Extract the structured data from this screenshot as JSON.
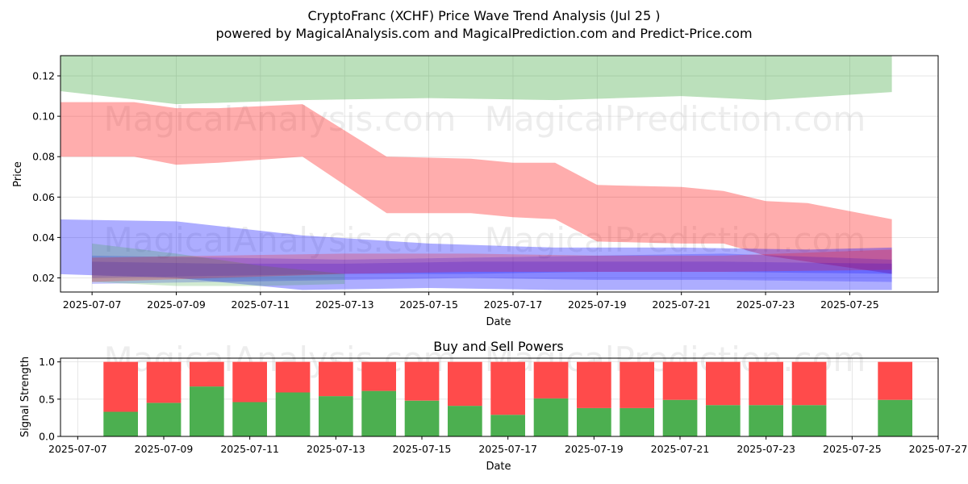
{
  "title": "CryptoFranc (XCHF) Price Wave Trend Analysis (Jul 25 )",
  "subtitle": "powered by MagicalAnalysis.com and MagicalPrediction.com and Predict-Price.com",
  "watermarks": [
    "MagicalAnalysis.com",
    "MagicalPrediction.com"
  ],
  "colors": {
    "green_band": "#2ca02c",
    "red_band": "#ff0000",
    "blue_band": "#0000ff",
    "buy": "#4caf50",
    "sell": "#ff4b4b",
    "grid": "#e0e0e0"
  },
  "chart_data": [
    {
      "type": "area",
      "title": "",
      "xlabel": "Date",
      "ylabel": "Price",
      "xlim": [
        "2025-07-06",
        "2025-07-27"
      ],
      "ylim": [
        0.013,
        0.13
      ],
      "x_ticks": [
        "2025-07-07",
        "2025-07-09",
        "2025-07-11",
        "2025-07-13",
        "2025-07-15",
        "2025-07-17",
        "2025-07-19",
        "2025-07-21",
        "2025-07-23",
        "2025-07-25"
      ],
      "y_ticks": [
        0.02,
        0.04,
        0.06,
        0.08,
        0.1,
        0.12
      ],
      "grid": true,
      "bands": [
        {
          "color": "green",
          "dates": [
            "2025-07-06",
            "2025-07-09",
            "2025-07-12",
            "2025-07-15",
            "2025-07-18",
            "2025-07-21",
            "2025-07-23",
            "2025-07-26"
          ],
          "lower": [
            0.113,
            0.106,
            0.108,
            0.109,
            0.108,
            0.11,
            0.108,
            0.112
          ],
          "upper": [
            0.135,
            0.135,
            0.135,
            0.135,
            0.135,
            0.135,
            0.135,
            0.135
          ]
        },
        {
          "color": "red",
          "dates": [
            "2025-07-06",
            "2025-07-08",
            "2025-07-09",
            "2025-07-10",
            "2025-07-12",
            "2025-07-14",
            "2025-07-16",
            "2025-07-17",
            "2025-07-18",
            "2025-07-19",
            "2025-07-21",
            "2025-07-22",
            "2025-07-23",
            "2025-07-24",
            "2025-07-25",
            "2025-07-26"
          ],
          "lower": [
            0.08,
            0.08,
            0.076,
            0.077,
            0.08,
            0.052,
            0.052,
            0.05,
            0.049,
            0.038,
            0.037,
            0.037,
            0.031,
            0.028,
            0.025,
            0.022
          ],
          "upper": [
            0.107,
            0.107,
            0.104,
            0.104,
            0.106,
            0.08,
            0.079,
            0.077,
            0.077,
            0.066,
            0.065,
            0.063,
            0.058,
            0.057,
            0.053,
            0.049
          ]
        },
        {
          "color": "blue",
          "dates": [
            "2025-07-06",
            "2025-07-09",
            "2025-07-12",
            "2025-07-15",
            "2025-07-18",
            "2025-07-21",
            "2025-07-24",
            "2025-07-26"
          ],
          "lower": [
            0.022,
            0.02,
            0.014,
            0.015,
            0.014,
            0.014,
            0.014,
            0.014
          ],
          "upper": [
            0.049,
            0.048,
            0.041,
            0.037,
            0.035,
            0.035,
            0.034,
            0.035
          ]
        },
        {
          "color": "blue",
          "dates": [
            "2025-07-07",
            "2025-07-10",
            "2025-07-13",
            "2025-07-16",
            "2025-07-19",
            "2025-07-22",
            "2025-07-26"
          ],
          "lower": [
            0.017,
            0.018,
            0.019,
            0.02,
            0.019,
            0.019,
            0.018
          ],
          "upper": [
            0.031,
            0.03,
            0.029,
            0.03,
            0.031,
            0.032,
            0.029
          ]
        },
        {
          "color": "blue",
          "dates": [
            "2025-07-07",
            "2025-07-10",
            "2025-07-13",
            "2025-07-16",
            "2025-07-19",
            "2025-07-22",
            "2025-07-26"
          ],
          "lower": [
            0.02,
            0.021,
            0.022,
            0.022,
            0.023,
            0.023,
            0.022
          ],
          "upper": [
            0.028,
            0.027,
            0.027,
            0.028,
            0.028,
            0.028,
            0.027
          ]
        },
        {
          "color": "green",
          "dates": [
            "2025-07-07",
            "2025-07-09",
            "2025-07-11",
            "2025-07-13"
          ],
          "lower": [
            0.018,
            0.016,
            0.016,
            0.017
          ],
          "upper": [
            0.037,
            0.032,
            0.026,
            0.022
          ]
        },
        {
          "color": "red",
          "dates": [
            "2025-07-07",
            "2025-07-10",
            "2025-07-13",
            "2025-07-16",
            "2025-07-19",
            "2025-07-22",
            "2025-07-26"
          ],
          "lower": [
            0.018,
            0.02,
            0.022,
            0.023,
            0.023,
            0.023,
            0.024
          ],
          "upper": [
            0.03,
            0.031,
            0.032,
            0.032,
            0.031,
            0.031,
            0.034
          ]
        }
      ]
    },
    {
      "type": "bar",
      "title": "Buy and Sell Powers",
      "xlabel": "Date",
      "ylabel": "Signal Strength",
      "xlim": [
        "2025-07-06.6",
        "2025-07-27"
      ],
      "ylim": [
        0,
        1.05
      ],
      "x_ticks": [
        "2025-07-07",
        "2025-07-09",
        "2025-07-11",
        "2025-07-13",
        "2025-07-15",
        "2025-07-17",
        "2025-07-19",
        "2025-07-21",
        "2025-07-23",
        "2025-07-25",
        "2025-07-27"
      ],
      "y_ticks": [
        0.0,
        0.5,
        1.0
      ],
      "grid": true,
      "categories": [
        "2025-07-08",
        "2025-07-09",
        "2025-07-10",
        "2025-07-11",
        "2025-07-12",
        "2025-07-13",
        "2025-07-14",
        "2025-07-15",
        "2025-07-16",
        "2025-07-17",
        "2025-07-18",
        "2025-07-19",
        "2025-07-20",
        "2025-07-21",
        "2025-07-22",
        "2025-07-23",
        "2025-07-24",
        "2025-07-26"
      ],
      "series": [
        {
          "values": [
            0.33,
            0.45,
            0.67,
            0.46,
            0.59,
            0.54,
            0.61,
            0.48,
            0.41,
            0.29,
            0.51,
            0.38,
            0.38,
            0.49,
            0.42,
            0.42,
            0.42,
            0.49
          ]
        },
        {
          "values": [
            0.67,
            0.55,
            0.33,
            0.54,
            0.41,
            0.46,
            0.39,
            0.52,
            0.59,
            0.71,
            0.49,
            0.62,
            0.62,
            0.51,
            0.58,
            0.58,
            0.58,
            0.51
          ]
        }
      ]
    }
  ]
}
